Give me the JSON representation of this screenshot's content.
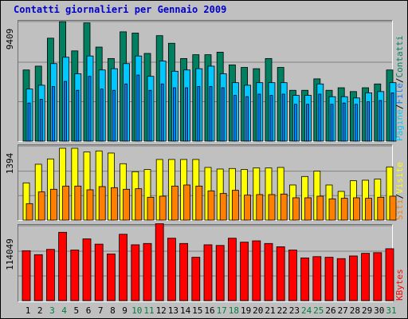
{
  "title": "Contatti giornalieri per Gennaio 2009",
  "colors": {
    "background": "#c0c0c0",
    "title": "#0000cc",
    "contatti": "#008060",
    "file": "#0080ff",
    "pagine": "#00c8ff",
    "visite": "#ffff00",
    "siti": "#ff8000",
    "kbytes": "#ff0000",
    "weekend_label": "#008040",
    "weekday_label": "#000000"
  },
  "chart_data": [
    {
      "type": "bar",
      "panel": "traffic",
      "y_max_label": "9409",
      "ylim": [
        0,
        9409
      ],
      "axis_label_parts": [
        "Pagine",
        "/",
        "File",
        "/",
        "Contatti"
      ],
      "categories": [
        "1",
        "2",
        "3",
        "4",
        "5",
        "6",
        "7",
        "8",
        "9",
        "10",
        "11",
        "12",
        "13",
        "14",
        "15",
        "16",
        "17",
        "18",
        "19",
        "20",
        "21",
        "22",
        "23",
        "24",
        "25",
        "26",
        "27",
        "28",
        "29",
        "30",
        "31"
      ],
      "weekend_days": [
        "3",
        "4",
        "10",
        "11",
        "17",
        "18",
        "24",
        "25",
        "31"
      ],
      "series": [
        {
          "name": "Contatti",
          "color": "#008060",
          "values": [
            5600,
            5900,
            8100,
            9400,
            7100,
            9300,
            7400,
            6500,
            8600,
            8500,
            6900,
            8300,
            7700,
            6500,
            6800,
            6800,
            7000,
            6000,
            5800,
            5700,
            6500,
            5800,
            4000,
            4000,
            4900,
            4000,
            4200,
            3900,
            4200,
            4500,
            5600
          ]
        },
        {
          "name": "Pagine",
          "color": "#00c8ff",
          "values": [
            4100,
            4400,
            6100,
            6600,
            5300,
            6700,
            5600,
            5700,
            6100,
            6700,
            5100,
            6300,
            5500,
            5600,
            5700,
            5900,
            5300,
            4600,
            4400,
            4600,
            4600,
            4600,
            3600,
            3600,
            4500,
            3500,
            3500,
            3400,
            3800,
            3900,
            4600
          ]
        },
        {
          "name": "File",
          "color": "#0080ff",
          "values": [
            3000,
            3300,
            4300,
            4700,
            4000,
            5100,
            4100,
            4000,
            4500,
            5200,
            4000,
            4500,
            4200,
            4200,
            4300,
            4300,
            4200,
            3600,
            3500,
            3700,
            3600,
            3700,
            2900,
            2900,
            3700,
            2900,
            3000,
            2900,
            3100,
            3200,
            3800
          ]
        }
      ]
    },
    {
      "type": "bar",
      "panel": "visits",
      "y_max_label": "1394",
      "ylim": [
        0,
        1394
      ],
      "axis_label_parts": [
        "Siti",
        "/",
        "Visite"
      ],
      "categories": [
        "1",
        "2",
        "3",
        "4",
        "5",
        "6",
        "7",
        "8",
        "9",
        "10",
        "11",
        "12",
        "13",
        "14",
        "15",
        "16",
        "17",
        "18",
        "19",
        "20",
        "21",
        "22",
        "23",
        "24",
        "25",
        "26",
        "27",
        "28",
        "29",
        "30",
        "31"
      ],
      "series": [
        {
          "name": "Visite",
          "color": "#ffff00",
          "values": [
            700,
            1050,
            1150,
            1350,
            1350,
            1280,
            1300,
            1260,
            1060,
            910,
            950,
            1140,
            1140,
            1140,
            1140,
            990,
            960,
            970,
            950,
            980,
            980,
            990,
            660,
            820,
            920,
            660,
            540,
            740,
            750,
            770,
            1000
          ]
        },
        {
          "name": "Siti",
          "color": "#ff8000",
          "values": [
            310,
            530,
            580,
            640,
            640,
            570,
            630,
            610,
            580,
            590,
            430,
            450,
            640,
            660,
            640,
            550,
            500,
            560,
            470,
            480,
            480,
            490,
            420,
            420,
            450,
            400,
            410,
            420,
            410,
            430,
            450
          ]
        }
      ]
    },
    {
      "type": "bar",
      "panel": "kbytes",
      "y_max_label": "114049",
      "ylim": [
        0,
        114049
      ],
      "axis_label_parts": [
        "KBytes"
      ],
      "categories": [
        "1",
        "2",
        "3",
        "4",
        "5",
        "6",
        "7",
        "8",
        "9",
        "10",
        "11",
        "12",
        "13",
        "14",
        "15",
        "16",
        "17",
        "18",
        "19",
        "20",
        "21",
        "22",
        "23",
        "24",
        "25",
        "26",
        "27",
        "28",
        "29",
        "30",
        "31"
      ],
      "series": [
        {
          "name": "KBytes",
          "color": "#ff0000",
          "values": [
            76000,
            70000,
            78000,
            104000,
            77000,
            94000,
            86000,
            71000,
            101000,
            85000,
            87000,
            117000,
            95000,
            87000,
            66000,
            85000,
            84000,
            95000,
            89000,
            91000,
            87000,
            82000,
            77000,
            65000,
            67000,
            66000,
            64000,
            68000,
            72000,
            73000,
            79000
          ]
        }
      ]
    }
  ],
  "x_axis": {
    "labels": [
      "1",
      "2",
      "3",
      "4",
      "5",
      "6",
      "7",
      "8",
      "9",
      "10",
      "11",
      "12",
      "13",
      "14",
      "15",
      "16",
      "17",
      "18",
      "19",
      "20",
      "21",
      "22",
      "23",
      "24",
      "25",
      "26",
      "27",
      "28",
      "29",
      "30",
      "31"
    ]
  }
}
